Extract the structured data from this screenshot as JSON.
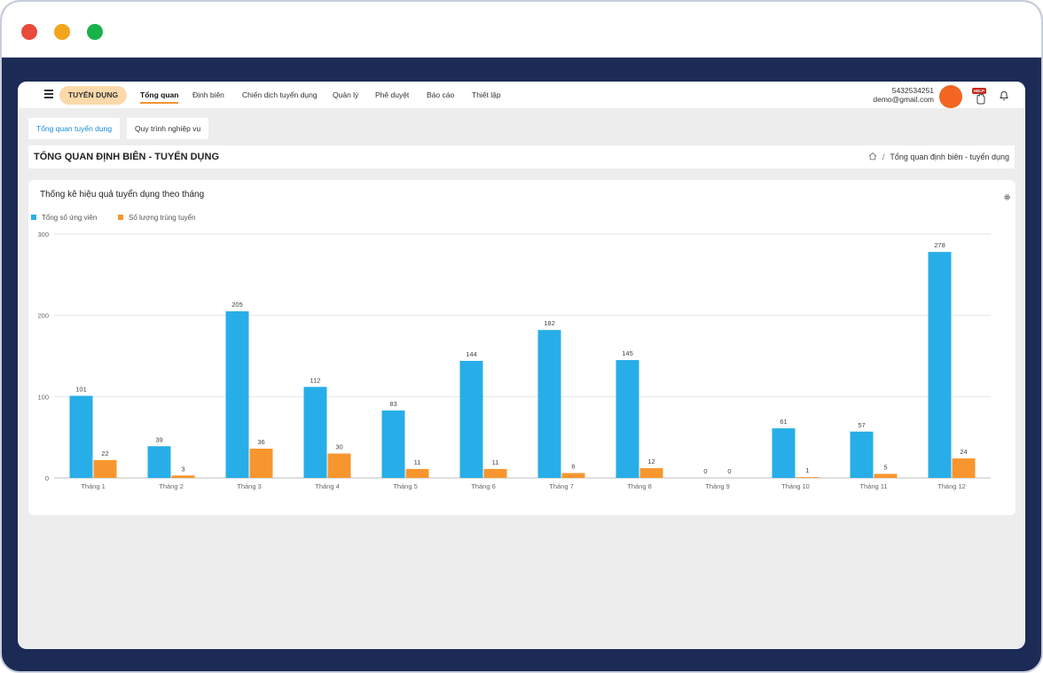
{
  "nav": {
    "module": "TUYỂN DỤNG",
    "items": [
      "Tổng quan",
      "Định biên",
      "Chiến dịch tuyển dụng",
      "Quản lý",
      "Phê duyệt",
      "Báo cáo",
      "Thiết lập"
    ],
    "active_index": 0,
    "user_phone": "5432534251",
    "user_email": "demo@gmail.com",
    "help_label": "HELP",
    "avatar_color": "#f26522"
  },
  "subtabs": [
    "Tổng quan tuyển dụng",
    "Quy trình nghiệp vụ"
  ],
  "page": {
    "title": "TỔNG QUAN ĐỊNH BIÊN - TUYỂN DỤNG",
    "breadcrumb": "Tổng quan định biên - tuyển dụng"
  },
  "card": {
    "title": "Thống kê hiệu quả tuyển dụng theo tháng"
  },
  "chart_data": {
    "type": "bar",
    "title": "Thống kê hiệu quả tuyển dụng theo tháng",
    "categories": [
      "Tháng 1",
      "Tháng 2",
      "Tháng 3",
      "Tháng 4",
      "Tháng 5",
      "Tháng 6",
      "Tháng 7",
      "Tháng 8",
      "Tháng 9",
      "Tháng 10",
      "Tháng 11",
      "Tháng 12"
    ],
    "series": [
      {
        "name": "Tổng số ứng viên",
        "color": "#27aee8",
        "values": [
          101,
          39,
          205,
          112,
          83,
          144,
          182,
          145,
          0,
          61,
          57,
          278
        ]
      },
      {
        "name": "Số lượng trúng tuyển",
        "color": "#f7962f",
        "values": [
          22,
          3,
          36,
          30,
          11,
          11,
          6,
          12,
          0,
          1,
          5,
          24
        ]
      }
    ],
    "ylim": [
      0,
      300
    ],
    "yticks": [
      0,
      100,
      200,
      300
    ],
    "grid": true,
    "legend": "top-left",
    "data_labels": true
  }
}
